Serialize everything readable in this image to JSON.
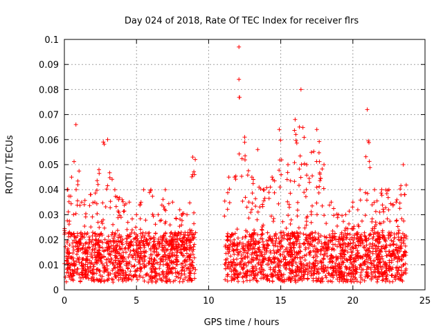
{
  "chart_data": {
    "type": "scatter",
    "title": "Day 024 of 2018, Rate Of TEC Index for receiver flrs",
    "xlabel": "GPS time / hours",
    "ylabel": "ROTI / TECUs",
    "xlim": [
      0,
      25
    ],
    "ylim": [
      0,
      0.1
    ],
    "x_ticks": [
      "0",
      "5",
      "10",
      "15",
      "20",
      "25"
    ],
    "x_tick_values": [
      0,
      5,
      10,
      15,
      20,
      25
    ],
    "y_ticks": [
      "0",
      "0.01",
      "0.02",
      "0.03",
      "0.04",
      "0.05",
      "0.06",
      "0.07",
      "0.08",
      "0.09",
      "0.1"
    ],
    "y_tick_values": [
      0,
      0.01,
      0.02,
      0.03,
      0.04,
      0.05,
      0.06,
      0.07,
      0.08,
      0.09,
      0.1
    ],
    "grid": true,
    "marker": "+",
    "color": "#ff0000",
    "series": [
      {
        "name": "ROTI",
        "segments": [
          {
            "x_start": 0.0,
            "x_end": 9.1
          },
          {
            "x_start": 11.1,
            "x_end": 23.7
          }
        ],
        "envelope": [
          {
            "x": 0.2,
            "y": 0.04
          },
          {
            "x": 0.5,
            "y": 0.045
          },
          {
            "x": 0.8,
            "y": 0.066
          },
          {
            "x": 1.2,
            "y": 0.035
          },
          {
            "x": 1.8,
            "y": 0.038
          },
          {
            "x": 2.4,
            "y": 0.048
          },
          {
            "x": 2.7,
            "y": 0.059
          },
          {
            "x": 3.0,
            "y": 0.06
          },
          {
            "x": 3.5,
            "y": 0.04
          },
          {
            "x": 4.0,
            "y": 0.036
          },
          {
            "x": 4.5,
            "y": 0.035
          },
          {
            "x": 5.0,
            "y": 0.03
          },
          {
            "x": 5.5,
            "y": 0.04
          },
          {
            "x": 6.0,
            "y": 0.04
          },
          {
            "x": 6.5,
            "y": 0.03
          },
          {
            "x": 7.0,
            "y": 0.04
          },
          {
            "x": 7.5,
            "y": 0.035
          },
          {
            "x": 8.0,
            "y": 0.032
          },
          {
            "x": 8.5,
            "y": 0.03
          },
          {
            "x": 8.9,
            "y": 0.053
          },
          {
            "x": 11.4,
            "y": 0.045
          },
          {
            "x": 11.8,
            "y": 0.045
          },
          {
            "x": 12.1,
            "y": 0.097
          },
          {
            "x": 12.5,
            "y": 0.061
          },
          {
            "x": 13.0,
            "y": 0.045
          },
          {
            "x": 13.4,
            "y": 0.056
          },
          {
            "x": 13.8,
            "y": 0.04
          },
          {
            "x": 14.4,
            "y": 0.045
          },
          {
            "x": 14.9,
            "y": 0.064
          },
          {
            "x": 15.5,
            "y": 0.05
          },
          {
            "x": 16.0,
            "y": 0.068
          },
          {
            "x": 16.4,
            "y": 0.08
          },
          {
            "x": 16.8,
            "y": 0.05
          },
          {
            "x": 17.5,
            "y": 0.064
          },
          {
            "x": 18.0,
            "y": 0.05
          },
          {
            "x": 18.5,
            "y": 0.035
          },
          {
            "x": 19.0,
            "y": 0.03
          },
          {
            "x": 19.5,
            "y": 0.03
          },
          {
            "x": 20.0,
            "y": 0.035
          },
          {
            "x": 20.5,
            "y": 0.04
          },
          {
            "x": 21.0,
            "y": 0.072
          },
          {
            "x": 21.5,
            "y": 0.04
          },
          {
            "x": 22.0,
            "y": 0.04
          },
          {
            "x": 22.5,
            "y": 0.04
          },
          {
            "x": 23.0,
            "y": 0.035
          },
          {
            "x": 23.5,
            "y": 0.05
          }
        ],
        "baseline_min": 0.003
      }
    ]
  }
}
